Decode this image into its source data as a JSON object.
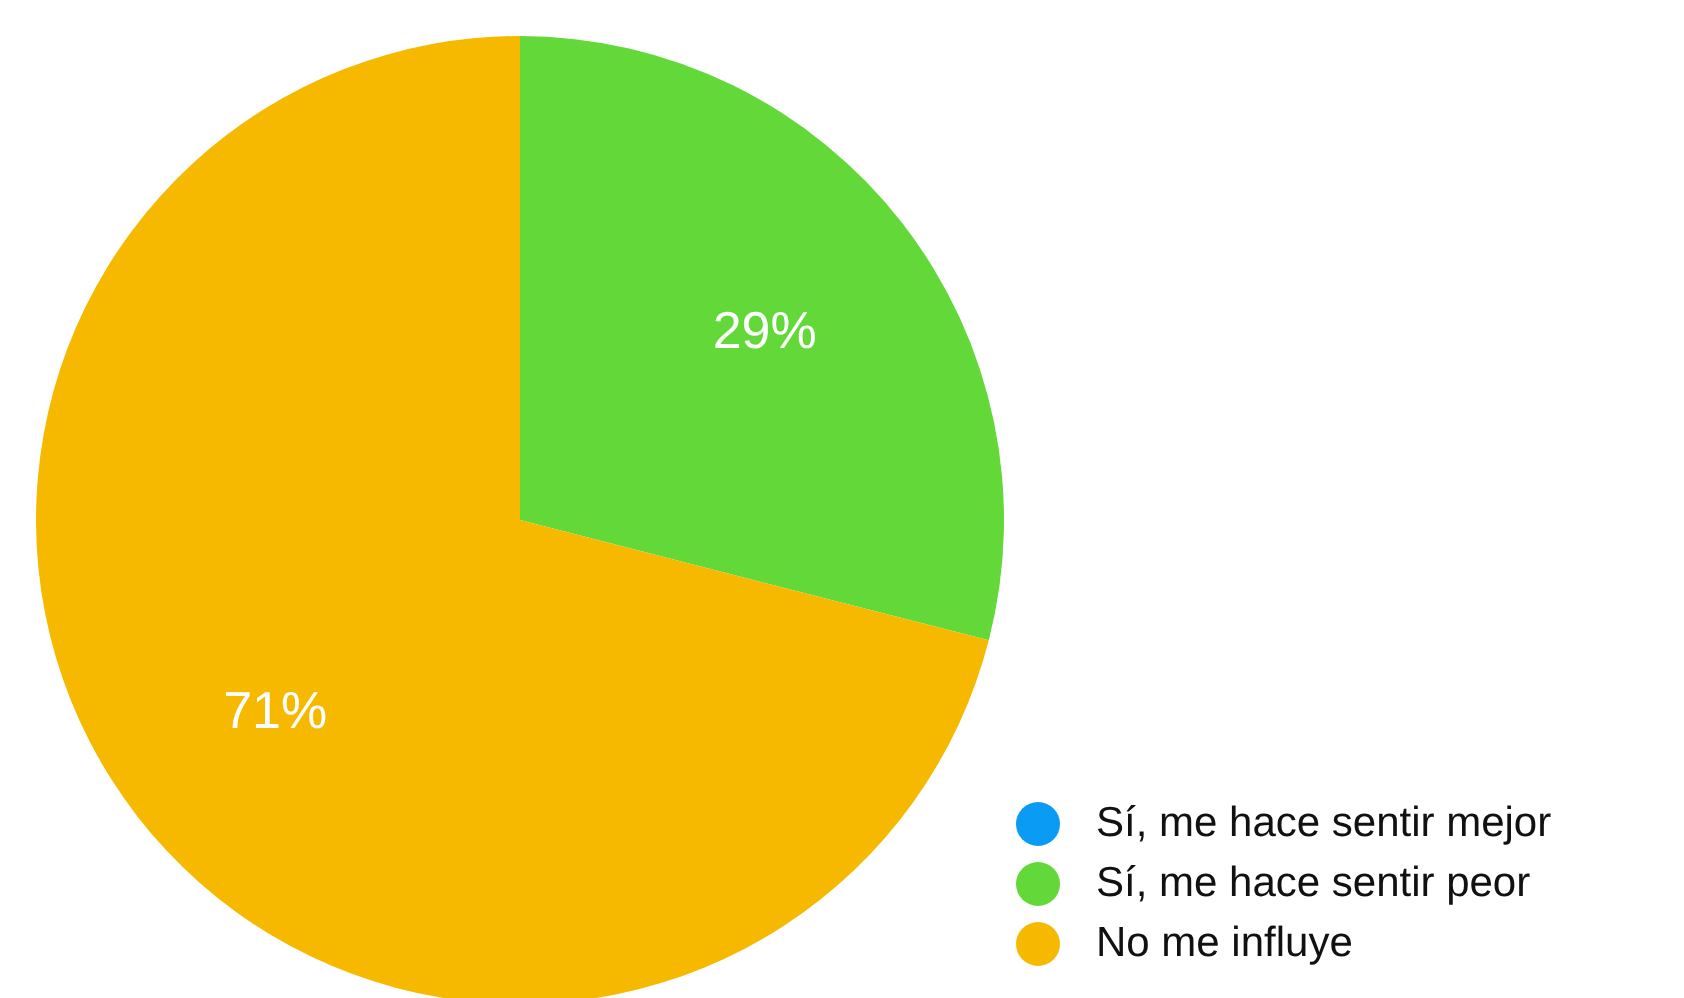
{
  "chart_data": {
    "type": "pie",
    "categories": [
      "Sí, me hace sentir mejor",
      "Sí, me hace sentir peor",
      "No me influye"
    ],
    "values": [
      0,
      29,
      71
    ],
    "colors": [
      "#0a9cf5",
      "#62d939",
      "#f7b900"
    ],
    "value_labels": [
      null,
      "29%",
      "71%"
    ],
    "legend": "bottom right"
  }
}
